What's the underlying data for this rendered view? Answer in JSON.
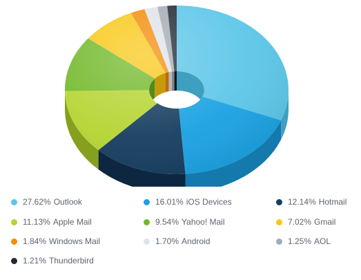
{
  "chart_data": {
    "type": "pie",
    "style": "3d-donut",
    "legend_position": "bottom",
    "slices": [
      {
        "label": "Outlook",
        "pct_text": "27.62%",
        "value": 27.62,
        "color": "#5cc6e8",
        "side": "#3f9fc0"
      },
      {
        "label": "iOS Devices",
        "pct_text": "16.01%",
        "value": 16.01,
        "color": "#1aa2e2",
        "side": "#1479ad"
      },
      {
        "label": "Hotmail",
        "pct_text": "12.14%",
        "value": 12.14,
        "color": "#163d5f",
        "side": "#0d2740"
      },
      {
        "label": "Apple Mail",
        "pct_text": "11.13%",
        "value": 11.13,
        "color": "#b6d432",
        "side": "#86a01e"
      },
      {
        "label": "Yahoo! Mail",
        "pct_text": "9.54%",
        "value": 9.54,
        "color": "#72b92a",
        "side": "#548a1c"
      },
      {
        "label": "Gmail",
        "pct_text": "7.02%",
        "value": 7.02,
        "color": "#f9c818",
        "side": "#c79a0c"
      },
      {
        "label": "Windows Mail",
        "pct_text": "1.84%",
        "value": 1.84,
        "color": "#f38d0c",
        "side": "#c06a06"
      },
      {
        "label": "Android",
        "pct_text": "1.70%",
        "value": 1.7,
        "color": "#dfe4ea",
        "side": "#b2b9c2"
      },
      {
        "label": "AOL",
        "pct_text": "1.25%",
        "value": 1.25,
        "color": "#a4abb3",
        "side": "#7b828a"
      },
      {
        "label": "Thunderbird",
        "pct_text": "1.21%",
        "value": 1.21,
        "color": "#212a35",
        "side": "#11171e"
      }
    ]
  }
}
